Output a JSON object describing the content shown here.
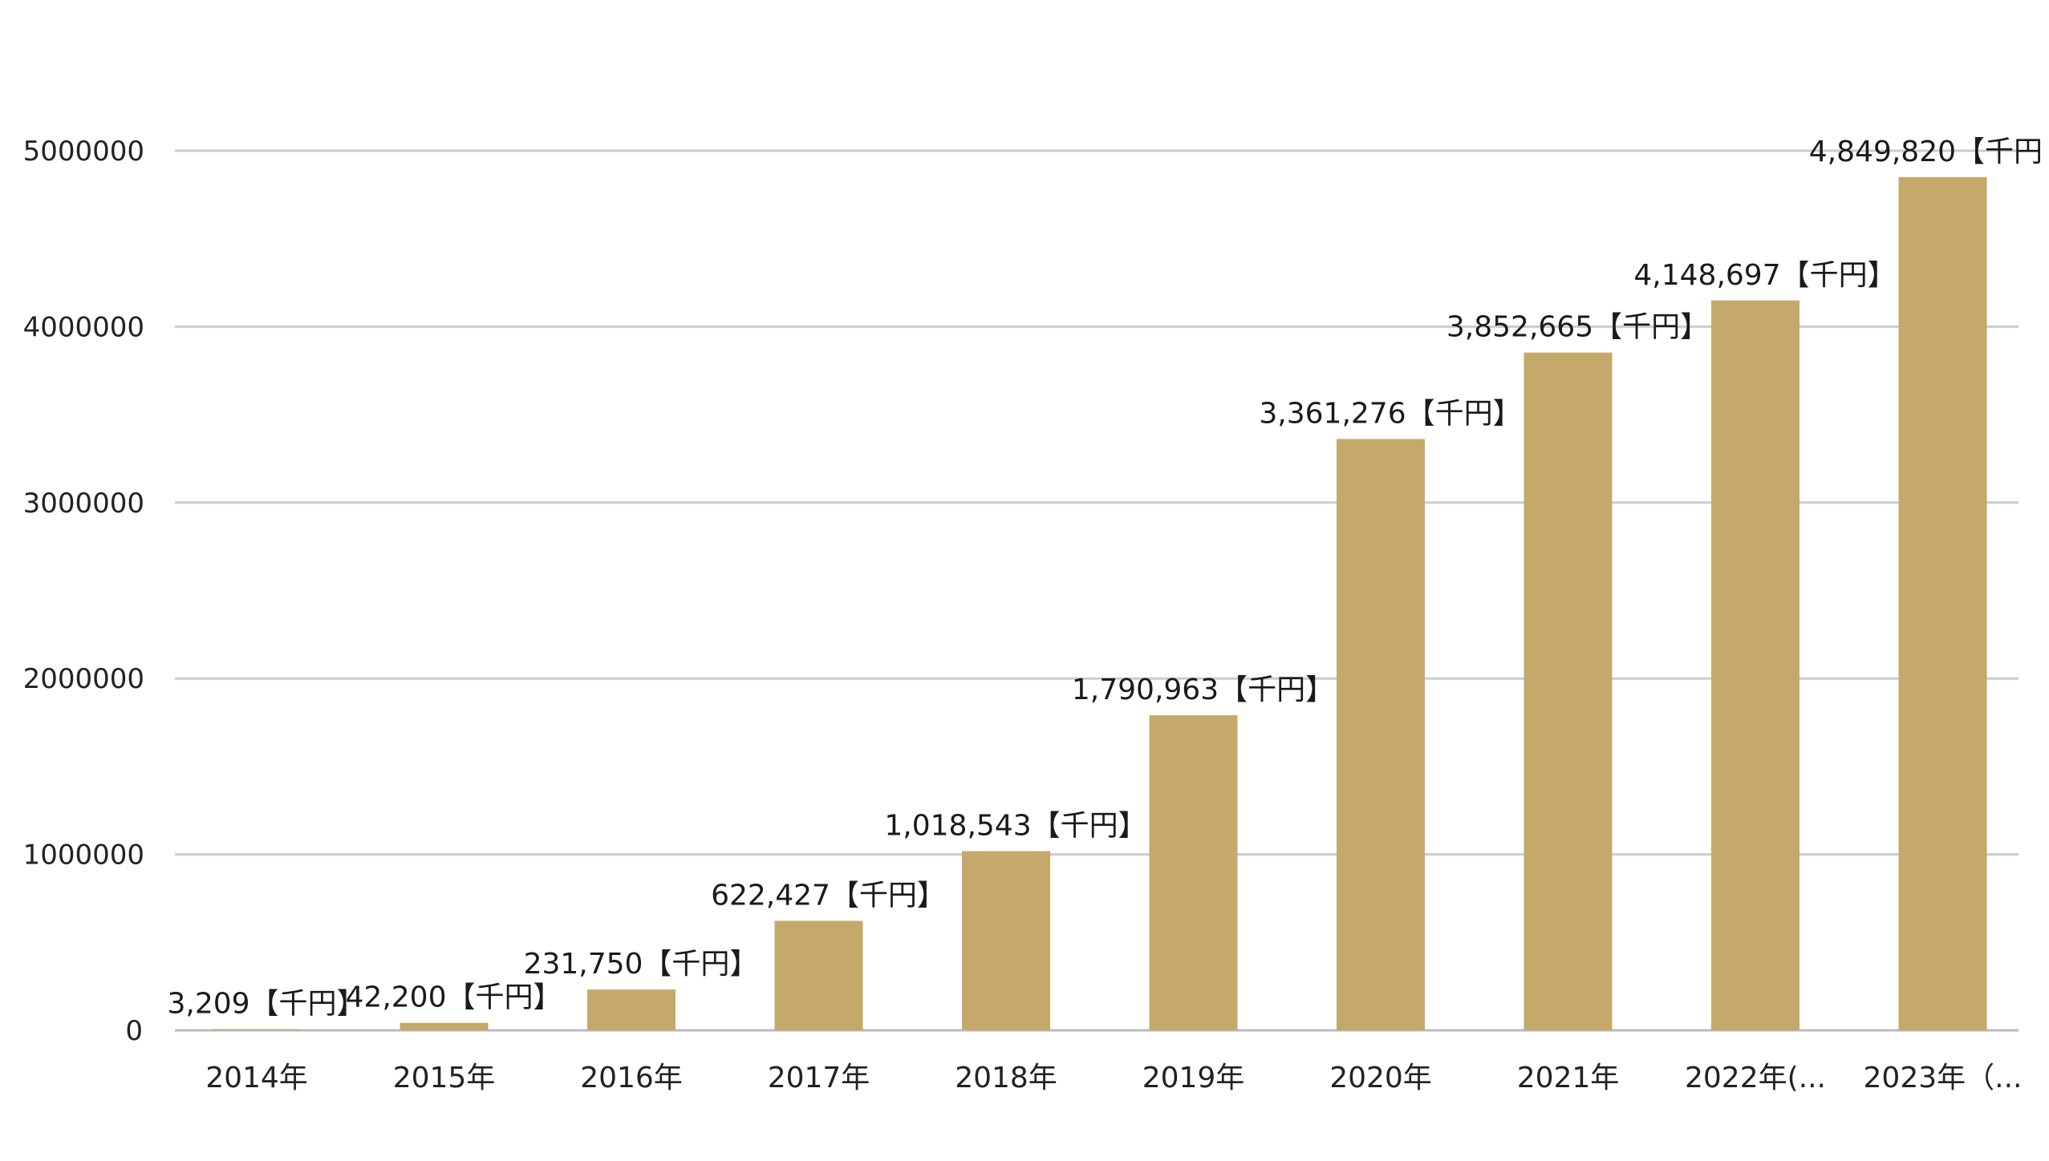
{
  "chart_data": {
    "type": "bar",
    "categories": [
      "2014年",
      "2015年",
      "2016年",
      "2017年",
      "2018年",
      "2019年",
      "2020年",
      "2021年",
      "2022年(...",
      "2023年（..."
    ],
    "values": [
      3209,
      42200,
      231750,
      622427,
      1018543,
      1790963,
      3361276,
      3852665,
      4148697,
      4849820
    ],
    "data_labels": [
      "3,209【千円】",
      "42,200【千円】",
      "231,750【千円】",
      "622,427【千円】",
      "1,018,543【千円】",
      "1,790,963【千円】",
      "3,361,276【千円】",
      "3,852,665【千円】",
      "4,148,697【千円】",
      "4,849,820【千円"
    ],
    "y_ticks": [
      0,
      1000000,
      2000000,
      3000000,
      4000000,
      5000000
    ],
    "y_tick_labels": [
      "0",
      "1000000",
      "2000000",
      "3000000",
      "4000000",
      "5000000"
    ],
    "ylim": [
      0,
      5000000
    ],
    "grid": true,
    "title": "",
    "xlabel": "",
    "ylabel": "",
    "colors": {
      "bar": "#c4a96a",
      "grid": "#c9ccd3",
      "text": "#222222"
    }
  }
}
